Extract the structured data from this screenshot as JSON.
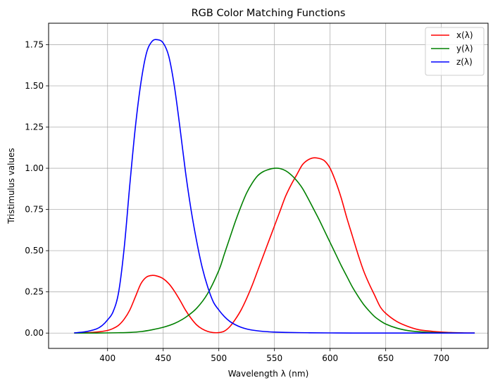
{
  "chart_data": {
    "type": "line",
    "title": "RGB Color Matching Functions",
    "xlabel": "Wavelength λ (nm)",
    "ylabel": "Tristimulus values",
    "xlim": [
      347,
      742
    ],
    "ylim": [
      -0.093,
      1.88
    ],
    "xticks": [
      400,
      450,
      500,
      550,
      600,
      650,
      700
    ],
    "xtick_labels": [
      "400",
      "450",
      "500",
      "550",
      "600",
      "650",
      "700"
    ],
    "yticks": [
      0.0,
      0.25,
      0.5,
      0.75,
      1.0,
      1.25,
      1.5,
      1.75
    ],
    "ytick_labels": [
      "0.00",
      "0.25",
      "0.50",
      "0.75",
      "1.00",
      "1.25",
      "1.50",
      "1.75"
    ],
    "grid": true,
    "legend_position": "top-right",
    "series": [
      {
        "name": "x(λ)",
        "color": "#ff0000",
        "x": [
          370,
          380,
          390,
          400,
          405,
          410,
          415,
          420,
          425,
          430,
          435,
          440,
          445,
          450,
          455,
          460,
          465,
          470,
          475,
          480,
          485,
          490,
          495,
          500,
          505,
          510,
          515,
          520,
          525,
          530,
          535,
          540,
          545,
          550,
          555,
          560,
          565,
          570,
          575,
          580,
          585,
          590,
          595,
          600,
          605,
          610,
          615,
          620,
          625,
          630,
          635,
          640,
          645,
          650,
          660,
          670,
          680,
          690,
          700,
          710,
          720,
          730
        ],
        "y": [
          0.0,
          0.002,
          0.006,
          0.016,
          0.028,
          0.048,
          0.085,
          0.14,
          0.22,
          0.3,
          0.34,
          0.35,
          0.345,
          0.33,
          0.3,
          0.255,
          0.2,
          0.14,
          0.09,
          0.05,
          0.025,
          0.01,
          0.003,
          0.003,
          0.012,
          0.04,
          0.085,
          0.14,
          0.21,
          0.29,
          0.38,
          0.47,
          0.56,
          0.65,
          0.74,
          0.83,
          0.9,
          0.96,
          1.02,
          1.05,
          1.063,
          1.06,
          1.045,
          1.0,
          0.92,
          0.82,
          0.7,
          0.59,
          0.48,
          0.38,
          0.3,
          0.23,
          0.16,
          0.12,
          0.07,
          0.04,
          0.02,
          0.012,
          0.006,
          0.003,
          0.001,
          0.0
        ],
        "y_offset_correction": false
      },
      {
        "name": "y(λ)",
        "color": "#008000",
        "x": [
          370,
          380,
          390,
          400,
          410,
          420,
          430,
          440,
          450,
          460,
          470,
          480,
          490,
          500,
          505,
          510,
          515,
          520,
          525,
          530,
          535,
          540,
          545,
          550,
          555,
          560,
          565,
          570,
          575,
          580,
          585,
          590,
          595,
          600,
          605,
          610,
          615,
          620,
          625,
          630,
          635,
          640,
          645,
          650,
          660,
          670,
          680,
          690,
          700,
          710,
          720,
          730
        ],
        "y": [
          0.0,
          0.0,
          0.0,
          0.001,
          0.002,
          0.004,
          0.009,
          0.02,
          0.035,
          0.058,
          0.095,
          0.15,
          0.24,
          0.38,
          0.48,
          0.58,
          0.68,
          0.77,
          0.85,
          0.91,
          0.955,
          0.98,
          0.993,
          1.0,
          0.998,
          0.985,
          0.96,
          0.925,
          0.88,
          0.82,
          0.755,
          0.69,
          0.62,
          0.55,
          0.48,
          0.41,
          0.345,
          0.28,
          0.225,
          0.175,
          0.135,
          0.1,
          0.075,
          0.055,
          0.03,
          0.015,
          0.008,
          0.004,
          0.002,
          0.001,
          0.0,
          0.0
        ]
      },
      {
        "name": "z(λ)",
        "color": "#0000ff",
        "x": [
          370,
          380,
          390,
          395,
          400,
          405,
          410,
          415,
          420,
          425,
          430,
          435,
          440,
          445,
          450,
          455,
          460,
          465,
          470,
          475,
          480,
          485,
          490,
          495,
          500,
          505,
          510,
          515,
          520,
          525,
          530,
          540,
          550,
          560,
          580,
          600,
          620,
          650,
          700,
          730
        ],
        "y": [
          0.001,
          0.008,
          0.025,
          0.045,
          0.08,
          0.13,
          0.25,
          0.52,
          0.9,
          1.25,
          1.52,
          1.7,
          1.77,
          1.78,
          1.76,
          1.68,
          1.5,
          1.25,
          0.98,
          0.75,
          0.56,
          0.4,
          0.28,
          0.19,
          0.14,
          0.1,
          0.07,
          0.05,
          0.035,
          0.025,
          0.018,
          0.01,
          0.006,
          0.004,
          0.002,
          0.001,
          0.0,
          0.0,
          0.0,
          0.0
        ]
      }
    ]
  }
}
